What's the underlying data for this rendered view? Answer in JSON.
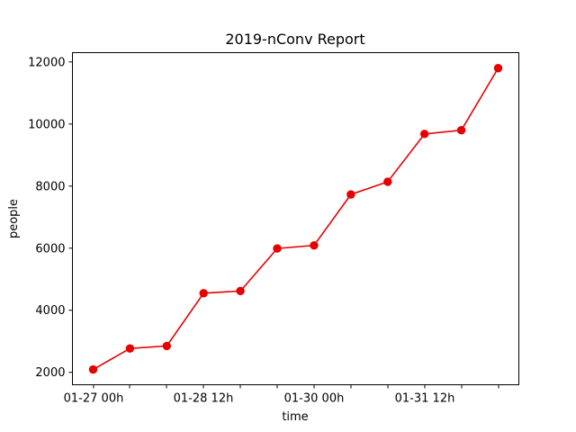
{
  "chart_data": {
    "type": "line",
    "title": "2019-nConv Report",
    "xlabel": "time",
    "ylabel": "people",
    "x_tick_labels": [
      "01-27 00h",
      "",
      "",
      "01-28 12h",
      "",
      "",
      "01-30 00h",
      "",
      "",
      "01-31 12h",
      "",
      ""
    ],
    "y_ticks": [
      2000,
      4000,
      6000,
      8000,
      10000,
      12000
    ],
    "ylim": [
      1600,
      12300
    ],
    "grid": false,
    "series": [
      {
        "color": "#e60000",
        "marker": "circle",
        "values": [
          2090,
          2770,
          2850,
          4550,
          4620,
          5990,
          6090,
          7730,
          8140,
          9680,
          9800,
          11800
        ]
      }
    ]
  }
}
